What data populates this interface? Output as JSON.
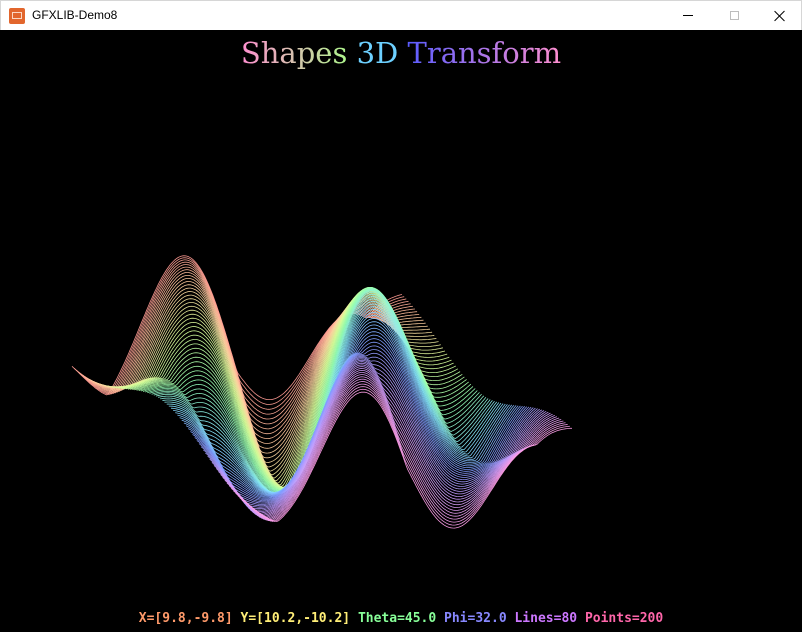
{
  "window": {
    "title": "GFXLIB-Demo8",
    "icon": "gfxlib-app-icon",
    "controls": [
      "minimize-icon",
      "maximize-icon",
      "close-icon"
    ]
  },
  "heading": {
    "text": "Shapes 3D Transform",
    "colors": [
      "#a7ff86",
      "#6dd0ff",
      "#5a5cff",
      "#ff8fd0"
    ]
  },
  "surface": {
    "lines": 80,
    "points": 200,
    "palette": [
      "#ff9a92",
      "#ffd2a0",
      "#d8ff9a",
      "#96ffb2",
      "#86e6ff",
      "#7f9bff",
      "#c79cff",
      "#ff9ee8"
    ]
  },
  "status": {
    "text": "X=[9.8,-9.8] Y=[10.2,-10.2] Theta=45.0 Phi=32.0 Lines=80 Points=200",
    "colors": [
      "#ff9a6a",
      "#ffee77",
      "#88ff99",
      "#66ddff",
      "#8888ff",
      "#cc77ff",
      "#ff66aa"
    ]
  }
}
